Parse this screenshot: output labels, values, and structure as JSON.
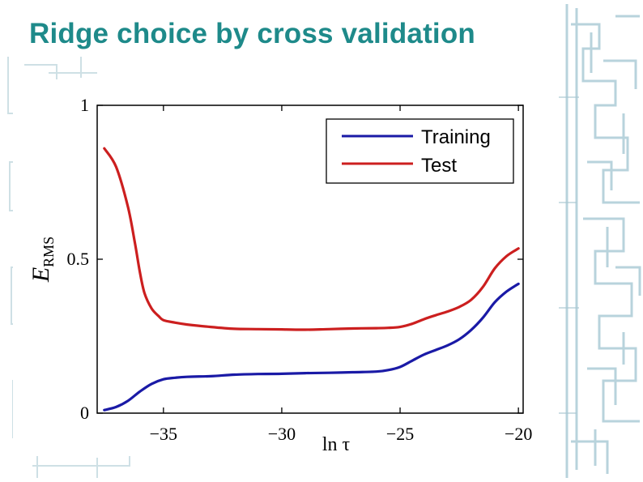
{
  "slide": {
    "title": "Ridge choice by cross validation",
    "title_color": "#1e8a8a"
  },
  "chart_data": {
    "type": "line",
    "title": "",
    "xlabel": "ln τ",
    "ylabel": "E",
    "ylabel_subscript": "RMS",
    "xlim": [
      -37.8,
      -19.8
    ],
    "ylim": [
      0,
      1
    ],
    "xticks": [
      -35,
      -30,
      -25,
      -20
    ],
    "xtick_labels": [
      "−35",
      "−30",
      "−25",
      "−20"
    ],
    "yticks": [
      0,
      0.5,
      1
    ],
    "ytick_labels": [
      "0",
      "0.5",
      "1"
    ],
    "grid": false,
    "legend_position": "top-right",
    "series": [
      {
        "name": "Training",
        "color": "#1a1aa6",
        "x": [
          -37.5,
          -37,
          -36.5,
          -36,
          -35.5,
          -35,
          -34.5,
          -34,
          -33,
          -32,
          -31,
          -30,
          -29,
          -28,
          -27,
          -26,
          -25.5,
          -25,
          -24.5,
          -24,
          -23.5,
          -23,
          -22.5,
          -22,
          -21.5,
          -21,
          -20.5,
          -20
        ],
        "y": [
          0.01,
          0.02,
          0.04,
          0.07,
          0.095,
          0.11,
          0.115,
          0.118,
          0.12,
          0.125,
          0.127,
          0.128,
          0.13,
          0.131,
          0.133,
          0.135,
          0.14,
          0.15,
          0.17,
          0.19,
          0.205,
          0.22,
          0.24,
          0.27,
          0.31,
          0.36,
          0.395,
          0.42
        ]
      },
      {
        "name": "Test",
        "color": "#cc1f1f",
        "x": [
          -37.5,
          -37,
          -36.5,
          -36.2,
          -36,
          -35.8,
          -35.5,
          -35.2,
          -35,
          -34.5,
          -34,
          -33,
          -32,
          -31,
          -30,
          -29,
          -28,
          -27,
          -26,
          -25.5,
          -25,
          -24.5,
          -24,
          -23.5,
          -23,
          -22.5,
          -22,
          -21.5,
          -21,
          -20.5,
          -20
        ],
        "y": [
          0.86,
          0.8,
          0.67,
          0.55,
          0.46,
          0.39,
          0.34,
          0.315,
          0.302,
          0.294,
          0.288,
          0.28,
          0.274,
          0.273,
          0.272,
          0.271,
          0.273,
          0.275,
          0.276,
          0.277,
          0.28,
          0.29,
          0.305,
          0.318,
          0.33,
          0.345,
          0.368,
          0.41,
          0.47,
          0.51,
          0.535
        ]
      }
    ]
  }
}
